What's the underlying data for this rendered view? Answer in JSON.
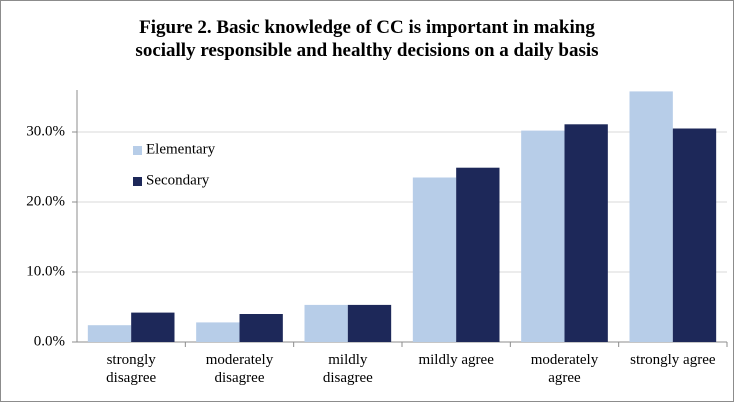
{
  "chart_data": {
    "type": "bar",
    "title": "Figure 2. Basic knowledge of CC is important in making\nsocially responsible and healthy decisions on a daily basis",
    "categories": [
      "strongly\ndisagree",
      "moderately\ndisagree",
      "mildly\ndisagree",
      "mildly agree",
      "moderately\nagree",
      "strongly agree"
    ],
    "series": [
      {
        "name": "Elementary",
        "color": "#b7cde8",
        "values": [
          2.4,
          2.8,
          5.3,
          23.5,
          30.2,
          35.8
        ]
      },
      {
        "name": "Secondary",
        "color": "#1d2859",
        "values": [
          4.2,
          4.0,
          5.3,
          24.9,
          31.1,
          30.5
        ]
      }
    ],
    "ylim": [
      0,
      36
    ],
    "yticks": [
      {
        "value": 0,
        "label": "0.0%"
      },
      {
        "value": 10,
        "label": "10.0%"
      },
      {
        "value": 20,
        "label": "20.0%"
      },
      {
        "value": 30,
        "label": "30.0%"
      }
    ],
    "grid": true,
    "legend": "upper left"
  }
}
